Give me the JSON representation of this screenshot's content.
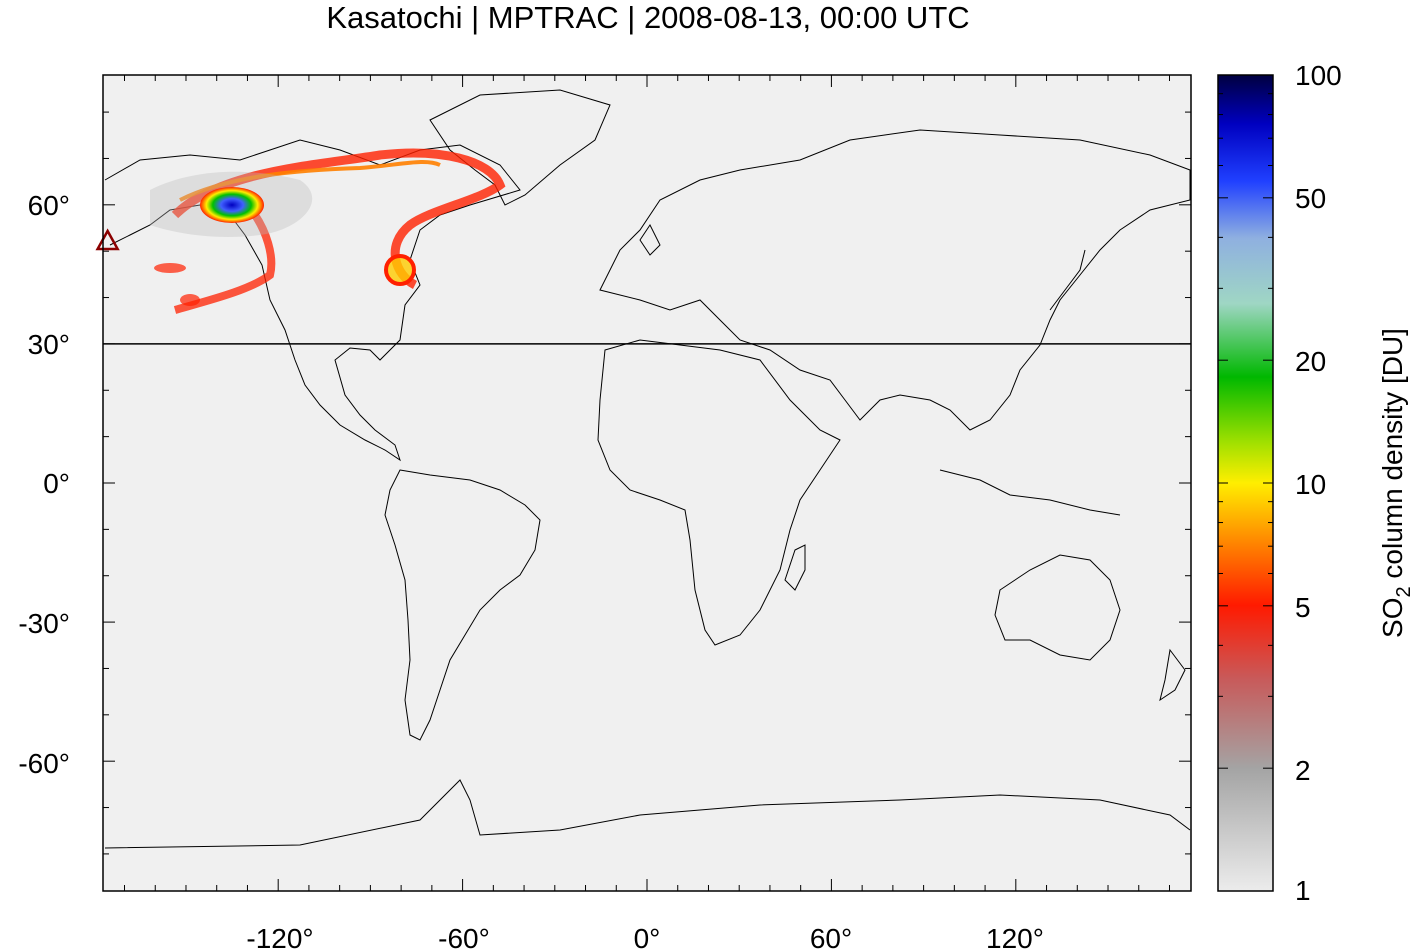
{
  "title": "Kasatochi | MPTRAC | 2008-08-13, 00:00 UTC",
  "map": {
    "lon_ticks": [
      "-120°",
      "-60°",
      "0°",
      "60°",
      "120°"
    ],
    "lat_ticks": [
      "60°",
      "30°",
      "0°",
      "-30°",
      "-60°"
    ],
    "lon_range": [
      -177,
      177
    ],
    "lat_range": [
      -88,
      88
    ],
    "reference_line_lat": 30,
    "background_color": "#f0f0f0",
    "volcano_marker": {
      "name": "Kasatochi",
      "lon": -175.5,
      "lat": 52.2,
      "icon": "triangle-marker-icon",
      "color": "#8b0000"
    }
  },
  "colorbar": {
    "label_main": "SO",
    "label_sub": "2",
    "label_rest": " column density [DU]",
    "scale": "log",
    "range": [
      1,
      100
    ],
    "ticks": [
      "100",
      "50",
      "20",
      "10",
      "5",
      "2",
      "1"
    ],
    "colors": [
      "#dcdcdc",
      "#a0a0a0",
      "#c85a5a",
      "#ff0000",
      "#ff8000",
      "#ffff00",
      "#00c000",
      "#a0d0d0",
      "#4060ff",
      "#0000c0",
      "#000040"
    ]
  }
}
